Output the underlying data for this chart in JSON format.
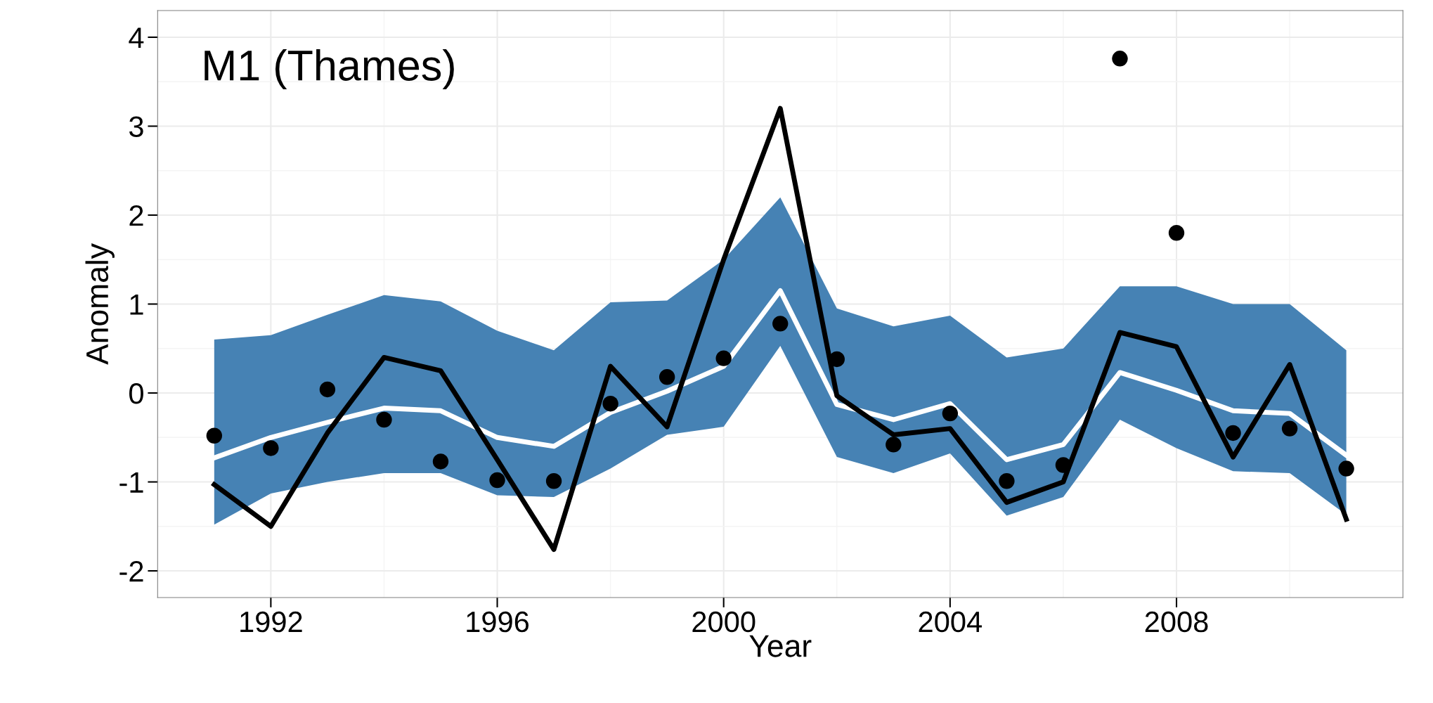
{
  "chart_data": {
    "type": "line",
    "xlabel": "Year",
    "ylabel": "Anomaly",
    "annotations": [
      "M1 (Thames)"
    ],
    "x": [
      1991,
      1992,
      1993,
      1994,
      1995,
      1996,
      1997,
      1998,
      1999,
      2000,
      2001,
      2002,
      2003,
      2004,
      2005,
      2006,
      2007,
      2008,
      2009,
      2010,
      2011
    ],
    "xlim": [
      1990,
      2012
    ],
    "xticks": [
      1992,
      1996,
      2000,
      2004,
      2008
    ],
    "ylim": [
      -2.3,
      4.3
    ],
    "yticks": [
      -2,
      -1,
      0,
      1,
      2,
      3,
      4
    ],
    "grid": true,
    "legend": false,
    "color": "#4682b4",
    "series": [
      {
        "color": "#ffffff",
        "values": [
          -0.73,
          -0.5,
          -0.33,
          -0.17,
          -0.2,
          -0.5,
          -0.6,
          -0.22,
          0.02,
          0.3,
          1.15,
          -0.13,
          -0.3,
          -0.12,
          -0.75,
          -0.58,
          0.23,
          0.03,
          -0.2,
          -0.23,
          -0.7
        ],
        "lower": [
          -1.48,
          -1.13,
          -1.0,
          -0.9,
          -0.9,
          -1.15,
          -1.17,
          -0.85,
          -0.47,
          -0.38,
          0.53,
          -0.72,
          -0.9,
          -0.68,
          -1.38,
          -1.17,
          -0.3,
          -0.62,
          -0.88,
          -0.9,
          -1.37
        ],
        "upper": [
          0.6,
          0.65,
          0.88,
          1.1,
          1.03,
          0.7,
          0.48,
          1.02,
          1.04,
          1.5,
          2.2,
          0.95,
          0.75,
          0.87,
          0.4,
          0.5,
          1.2,
          1.2,
          1.0,
          1.0,
          0.48
        ]
      },
      {
        "type": "line",
        "color": "#000000",
        "values": [
          -1.03,
          -1.5,
          -0.45,
          0.4,
          0.25,
          -0.75,
          -1.76,
          0.3,
          -0.38,
          1.5,
          3.2,
          -0.03,
          -0.47,
          -0.4,
          -1.23,
          -1.0,
          0.68,
          0.52,
          -0.72,
          0.32,
          -1.42
        ]
      },
      {
        "type": "scatter",
        "color": "#000000",
        "marker": "circle",
        "values": [
          -0.48,
          -0.62,
          0.04,
          -0.3,
          -0.77,
          -0.98,
          -0.99,
          -0.12,
          0.18,
          0.39,
          0.78,
          0.38,
          -0.58,
          -0.23,
          -0.99,
          -0.81,
          3.76,
          1.8,
          -0.45,
          -0.4,
          -0.85
        ]
      }
    ]
  }
}
